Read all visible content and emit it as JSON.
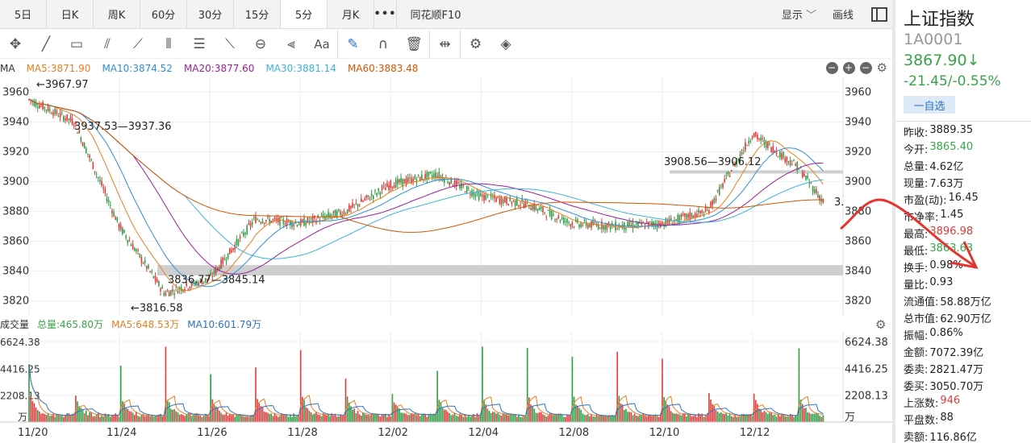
{
  "tabs": [
    {
      "label": "5日",
      "active": false
    },
    {
      "label": "日K",
      "active": false
    },
    {
      "label": "周K",
      "active": false
    },
    {
      "label": "60分",
      "active": false
    },
    {
      "label": "30分",
      "active": false
    },
    {
      "label": "15分",
      "active": false
    },
    {
      "label": "5分",
      "active": true
    },
    {
      "label": "月K",
      "active": false
    }
  ],
  "more_label": "•••",
  "f10_label": "同花顺F10",
  "display_label": "显示",
  "draw_label": "画线",
  "tool_icons": [
    "crosshair-move-icon",
    "line-icon",
    "rectangle-icon",
    "fan-icon",
    "polyline-icon",
    "channel-icon",
    "gann-icon",
    "wave-icon",
    "cycle-icon",
    "fib-icon",
    "text-icon",
    "pen-icon",
    "magnet-icon",
    "trash-icon",
    "range-icon",
    "settings-icon",
    "layers-icon"
  ],
  "ma": {
    "prefix": "MA",
    "ma5": "MA5:3871.90",
    "ma10": "MA10:3874.52",
    "ma20": "MA20:3877.60",
    "ma30": "MA30:3881.14",
    "ma60": "MA60:3883.48",
    "colors": {
      "ma5": "#e67e22",
      "ma10": "#2f8fd6",
      "ma20": "#9b1f9a",
      "ma30": "#3bb3d6",
      "ma60": "#d35400"
    }
  },
  "chart_data": {
    "type": "line",
    "x_ticks": [
      "11/20",
      "11/24",
      "11/26",
      "11/28",
      "12/02",
      "12/04",
      "12/08",
      "12/10",
      "12/12"
    ],
    "price_ylim": [
      3810,
      3970
    ],
    "price_ticks": [
      "3960",
      "3940",
      "3920",
      "3900",
      "3880",
      "3860",
      "3840",
      "3820"
    ],
    "series": [
      {
        "x": [
          0,
          0.5,
          1,
          1.5,
          2,
          2.5,
          3,
          3.5,
          4,
          4.5,
          5,
          5.5,
          6,
          6.5,
          7,
          7.5,
          8,
          8.5,
          8.8
        ],
        "values": [
          3955,
          3940,
          3870,
          3825,
          3835,
          3875,
          3872,
          3880,
          3898,
          3905,
          3890,
          3885,
          3872,
          3870,
          3872,
          3880,
          3932,
          3910,
          3885
        ]
      }
    ],
    "annotations": [
      {
        "text": "←3967.97"
      },
      {
        "text": "3937.53—3937.36"
      },
      {
        "text": "3908.56—3906.12"
      },
      {
        "text": "3836.77—3845.14"
      },
      {
        "text": "←3816.58"
      }
    ],
    "volume_ticks_left": [
      "6624.38",
      "4416.25",
      "2208.13"
    ],
    "volume_ticks_right": [
      "6624.38",
      "4416.25",
      "2208.13"
    ],
    "volume_unit": "万",
    "right_edge_label": "3."
  },
  "volume": {
    "title": "成交量",
    "total": "总量:465.80万",
    "ma5": "MA5:648.53万",
    "ma10": "MA10:601.79万"
  },
  "panel": {
    "name": "上证指数",
    "code": "1A0001",
    "price": "3867.90↓",
    "change": "-21.45/-0.55%",
    "fav": "一自选",
    "stats": [
      {
        "label": "昨收:",
        "value": "3889.35",
        "color": "#222"
      },
      {
        "label": "今开:",
        "value": "3865.40",
        "color": "#3aa34a"
      },
      {
        "label": "总量:",
        "value": "4.62亿",
        "color": "#222"
      },
      {
        "label": "现量:",
        "value": "7.63万",
        "color": "#222"
      },
      {
        "label": "市盈(动):",
        "value": "16.45",
        "color": "#222"
      },
      {
        "label": "市净率:",
        "value": "1.45",
        "color": "#222"
      },
      {
        "label": "最高:",
        "value": "3896.98",
        "color": "#e03a3a"
      },
      {
        "label": "最低:",
        "value": "3863.63",
        "color": "#3aa34a"
      },
      {
        "label": "换手:",
        "value": "0.98%",
        "color": "#222"
      },
      {
        "label": "量比:",
        "value": "0.93",
        "color": "#222"
      },
      {
        "label": "流通值:",
        "value": "58.88万亿",
        "color": "#222"
      },
      {
        "label": "总市值:",
        "value": "62.90万亿",
        "color": "#222"
      },
      {
        "label": "振幅:",
        "value": "0.86%",
        "color": "#222"
      },
      {
        "label": "金额:",
        "value": "7072.39亿",
        "color": "#222"
      },
      {
        "label": "委卖:",
        "value": "2821.47万",
        "color": "#222"
      },
      {
        "label": "委买:",
        "value": "3050.70万",
        "color": "#222"
      },
      {
        "label": "上涨数:",
        "value": "946",
        "color": "#e03a3a"
      },
      {
        "label": "平盘数:",
        "value": "88",
        "color": "#222"
      },
      {
        "label": "卖额:",
        "value": "116.86亿",
        "color": "#222"
      }
    ]
  }
}
